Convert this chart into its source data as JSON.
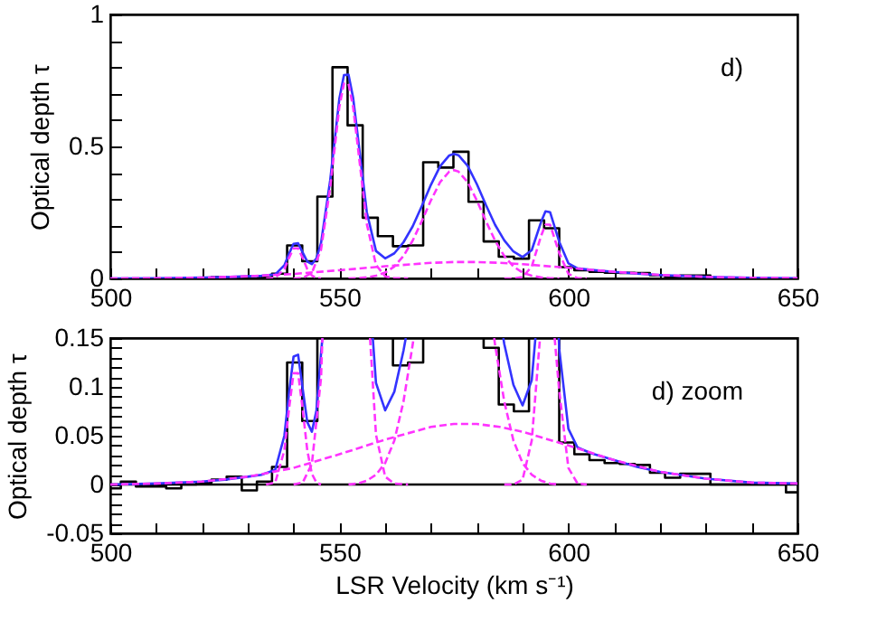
{
  "chart_data": [
    {
      "type": "line",
      "ylabel": "Optical depth τ",
      "annotations": [
        "d)"
      ],
      "xlim": [
        500,
        650
      ],
      "ylim": [
        0,
        1
      ],
      "xticks": [
        500,
        {
          "value": 510,
          "label": null
        },
        {
          "value": 520,
          "label": null
        },
        {
          "value": 530,
          "label": null
        },
        {
          "value": 540,
          "label": null
        },
        550,
        {
          "value": 560,
          "label": null
        },
        {
          "value": 570,
          "label": null
        },
        {
          "value": 580,
          "label": null
        },
        {
          "value": 590,
          "label": null
        },
        600,
        {
          "value": 610,
          "label": null
        },
        {
          "value": 620,
          "label": null
        },
        {
          "value": 630,
          "label": null
        },
        {
          "value": 640,
          "label": null
        },
        650
      ],
      "yticks": [
        0,
        {
          "value": 0.1,
          "label": null
        },
        {
          "value": 0.2,
          "label": null
        },
        {
          "value": 0.3,
          "label": null
        },
        {
          "value": 0.4,
          "label": null
        },
        0.5,
        {
          "value": 0.6,
          "label": null
        },
        {
          "value": 0.7,
          "label": null
        },
        {
          "value": 0.8,
          "label": null
        },
        {
          "value": 0.9,
          "label": null
        },
        1
      ],
      "series": [
        {
          "type": "step",
          "color": "#000000",
          "x": [
            515.5,
            518.8,
            522.1,
            525.4,
            528.7,
            532.0,
            535.3,
            538.6,
            541.9,
            545.2,
            548.5,
            551.8,
            555.1,
            558.4,
            561.7,
            565.0,
            568.3,
            571.6,
            574.9,
            578.2,
            581.5,
            584.8,
            588.1,
            591.4,
            594.7,
            598.0,
            601.3,
            604.6,
            607.9,
            611.2,
            614.5,
            617.8,
            621.1,
            624.4,
            627.7,
            631.0,
            634.3,
            637.6,
            640.9,
            644.2
          ],
          "values": [
            0,
            0.002,
            0.005,
            0.008,
            null,
            0.003,
            0.018,
            0.125,
            0.065,
            0.31,
            0.8,
            0.58,
            0.23,
            0.16,
            0.122,
            0.125,
            0.44,
            0.42,
            0.48,
            0.29,
            0.14,
            0.082,
            0.075,
            0.22,
            0.19,
            0.043,
            0.031,
            0.025,
            0.022,
            0.021,
            0.02,
            0.012,
            0.007,
            0.011,
            0.011,
            0,
            0,
            0,
            0,
            0
          ]
        },
        {
          "type": "line",
          "color": "#3333ff",
          "x": [
            500,
            510,
            520,
            525,
            530,
            533,
            536,
            538,
            539,
            540,
            541,
            542,
            543,
            544,
            545,
            546,
            548,
            550,
            551,
            552,
            553,
            554,
            556,
            558,
            560,
            562,
            564,
            566,
            568,
            570,
            572,
            574,
            575,
            576,
            578,
            580,
            582,
            584,
            586,
            588,
            590,
            592,
            594,
            595,
            596,
            598,
            600,
            602,
            605,
            610,
            615,
            620,
            630,
            640,
            650
          ],
          "values": [
            0,
            0.001,
            0.003,
            0.005,
            0.008,
            0.01,
            0.015,
            0.05,
            0.093,
            0.131,
            0.133,
            0.098,
            0.064,
            0.054,
            0.076,
            0.134,
            0.372,
            0.681,
            0.77,
            0.772,
            0.685,
            0.542,
            0.25,
            0.104,
            0.076,
            0.095,
            0.137,
            0.197,
            0.274,
            0.355,
            0.425,
            0.466,
            0.472,
            0.467,
            0.427,
            0.358,
            0.278,
            0.203,
            0.144,
            0.102,
            0.081,
            0.107,
            0.212,
            0.254,
            0.251,
            0.139,
            0.057,
            0.038,
            0.032,
            0.025,
            0.018,
            0.013,
            0.006,
            0.002,
            0.001
          ]
        },
        {
          "type": "line",
          "color": "#ff33ff",
          "line_style": "dashed",
          "x": [
            534,
            536,
            538,
            539,
            540,
            541,
            542,
            543,
            544,
            545,
            546
          ],
          "values": [
            0,
            0.002,
            0.035,
            0.077,
            0.114,
            0.114,
            0.077,
            0.035,
            0.011,
            0.002,
            0
          ]
        },
        {
          "type": "line",
          "color": "#ff33ff",
          "line_style": "dashed",
          "x": [
            540,
            542,
            544,
            546,
            548,
            550,
            551,
            552,
            553,
            554,
            556,
            558,
            560,
            562,
            565
          ],
          "values": [
            0,
            0.002,
            0.021,
            0.109,
            0.344,
            0.65,
            0.738,
            0.738,
            0.65,
            0.504,
            0.206,
            0.051,
            0.008,
            0.001,
            0
          ]
        },
        {
          "type": "line",
          "color": "#ff33ff",
          "line_style": "dashed",
          "x": [
            552,
            554,
            556,
            558,
            560,
            562,
            564,
            566,
            568,
            570,
            572,
            574,
            575,
            576,
            578,
            580,
            582,
            584,
            586,
            588,
            590,
            592,
            594,
            596,
            598
          ],
          "values": [
            0,
            0.001,
            0.004,
            0.01,
            0.022,
            0.045,
            0.085,
            0.143,
            0.217,
            0.296,
            0.365,
            0.405,
            0.41,
            0.405,
            0.365,
            0.296,
            0.217,
            0.143,
            0.085,
            0.045,
            0.022,
            0.01,
            0.004,
            0.001,
            0
          ]
        },
        {
          "type": "line",
          "color": "#ff33ff",
          "line_style": "dashed",
          "x": [
            586,
            588,
            590,
            592,
            594,
            595,
            596,
            598,
            600,
            602,
            604
          ],
          "values": [
            0,
            0,
            0.005,
            0.045,
            0.159,
            0.204,
            0.204,
            0.096,
            0.017,
            0.001,
            0
          ]
        },
        {
          "type": "line",
          "color": "#ff33ff",
          "line_style": "dashed",
          "x": [
            500,
            510,
            520,
            530,
            540,
            550,
            560,
            570,
            575,
            578,
            580,
            585,
            590,
            600,
            610,
            620,
            630,
            640,
            650
          ],
          "values": [
            0,
            0.001,
            0.003,
            0.008,
            0.017,
            0.031,
            0.046,
            0.059,
            0.062,
            0.062,
            0.062,
            0.059,
            0.054,
            0.04,
            0.025,
            0.013,
            0.006,
            0.002,
            0.001
          ]
        }
      ]
    },
    {
      "type": "line",
      "xlabel": "LSR Velocity (km s⁻¹)",
      "ylabel": "Optical depth τ",
      "annotations": [
        "d) zoom"
      ],
      "xlim": [
        500,
        650
      ],
      "ylim": [
        -0.05,
        0.15
      ],
      "xticks": [
        500,
        {
          "value": 510,
          "label": null
        },
        {
          "value": 520,
          "label": null
        },
        {
          "value": 530,
          "label": null
        },
        {
          "value": 540,
          "label": null
        },
        550,
        {
          "value": 560,
          "label": null
        },
        {
          "value": 570,
          "label": null
        },
        {
          "value": 580,
          "label": null
        },
        {
          "value": 590,
          "label": null
        },
        600,
        {
          "value": 610,
          "label": null
        },
        {
          "value": 620,
          "label": null
        },
        {
          "value": 630,
          "label": null
        },
        {
          "value": 640,
          "label": null
        },
        650
      ],
      "yticks": [
        -0.05,
        {
          "value": -0.04,
          "label": null
        },
        {
          "value": -0.03,
          "label": null
        },
        {
          "value": -0.02,
          "label": null
        },
        {
          "value": -0.01,
          "label": null
        },
        0,
        {
          "value": 0.01,
          "label": null
        },
        {
          "value": 0.02,
          "label": null
        },
        {
          "value": 0.03,
          "label": null
        },
        {
          "value": 0.04,
          "label": null
        },
        0.05,
        {
          "value": 0.06,
          "label": null
        },
        {
          "value": 0.07,
          "label": null
        },
        {
          "value": 0.08,
          "label": null
        },
        {
          "value": 0.09,
          "label": null
        },
        0.1,
        {
          "value": 0.11,
          "label": null
        },
        {
          "value": 0.12,
          "label": null
        },
        {
          "value": 0.13,
          "label": null
        },
        {
          "value": 0.14,
          "label": null
        },
        0.15
      ],
      "ref_lines": [
        {
          "axis": "y",
          "value": 0,
          "color": "#000000"
        }
      ],
      "series": [
        {
          "type": "step",
          "color": "#000000",
          "x": [
            500,
            502.3,
            505.6,
            508.9,
            512.2,
            515.5,
            518.8,
            522.1,
            525.4,
            528.7,
            532.0,
            535.3,
            538.6,
            541.9,
            545.2,
            548.5,
            561.7,
            561.7,
            565.0,
            568.3,
            571.6,
            581.5,
            581.5,
            584.8,
            588.1,
            591.4,
            594.7,
            598.0,
            598.0,
            601.3,
            604.6,
            607.9,
            611.2,
            614.5,
            617.8,
            621.1,
            624.4,
            627.7,
            631.0,
            634.3,
            637.6,
            640.9,
            644.2,
            647.5,
            650
          ],
          "values": [
            -0.004,
            0.003,
            -0.002,
            -0.002,
            -0.004,
            0,
            0.002,
            0.005,
            0.008,
            -0.006,
            0.003,
            0.018,
            0.125,
            0.065,
            0.15,
            null,
            0.15,
            0.122,
            0.125,
            0.15,
            null,
            0.15,
            0.14,
            0.082,
            0.075,
            0.15,
            null,
            0.15,
            0.043,
            0.031,
            0.025,
            0.022,
            0.021,
            0.02,
            0.012,
            0.007,
            0.011,
            0.011,
            0,
            0,
            0,
            0,
            0,
            -0.008,
            -0.008
          ]
        },
        {
          "type": "line",
          "color": "#3333ff",
          "x": [
            500,
            510,
            520,
            525,
            530,
            533,
            536,
            538,
            539,
            540,
            541,
            542,
            543,
            544,
            545,
            546,
            546.3,
            552,
            557.3,
            558,
            560,
            562,
            564,
            564.5,
            575,
            585.8,
            586,
            588,
            590,
            592,
            592.8,
            595,
            597.9,
            598,
            600,
            602,
            605,
            610,
            615,
            620,
            630,
            640,
            650
          ],
          "values": [
            0,
            0.001,
            0.003,
            0.005,
            0.008,
            0.01,
            0.015,
            0.05,
            0.093,
            0.131,
            0.133,
            0.098,
            0.064,
            0.054,
            0.076,
            0.134,
            0.15,
            null,
            0.15,
            0.104,
            0.076,
            0.095,
            0.137,
            0.15,
            null,
            0.15,
            0.144,
            0.102,
            0.081,
            0.107,
            0.15,
            null,
            0.15,
            0.139,
            0.057,
            0.038,
            0.032,
            0.025,
            0.018,
            0.013,
            0.006,
            0.002,
            0.001
          ]
        },
        {
          "type": "line",
          "color": "#ff33ff",
          "line_style": "dashed",
          "x": [
            534,
            536,
            538,
            539,
            540,
            541,
            542,
            543,
            544,
            545,
            546
          ],
          "values": [
            0,
            0.002,
            0.035,
            0.077,
            0.114,
            0.114,
            0.077,
            0.035,
            0.011,
            0.002,
            0
          ]
        },
        {
          "type": "line",
          "color": "#ff33ff",
          "line_style": "dashed",
          "x": [
            540,
            542,
            544,
            546,
            546.3,
            551,
            556.7,
            558,
            560,
            562,
            565
          ],
          "values": [
            0,
            0.002,
            0.021,
            0.109,
            0.15,
            null,
            0.15,
            0.051,
            0.008,
            0.001,
            0
          ]
        },
        {
          "type": "line",
          "color": "#ff33ff",
          "line_style": "dashed",
          "x": [
            552,
            554,
            556,
            558,
            560,
            562,
            564,
            566,
            566.2,
            575,
            583.8,
            584,
            586,
            588,
            590,
            592,
            594,
            596,
            598
          ],
          "values": [
            0,
            0.001,
            0.004,
            0.01,
            0.022,
            0.045,
            0.085,
            0.143,
            0.15,
            null,
            0.15,
            0.143,
            0.085,
            0.045,
            0.022,
            0.01,
            0.004,
            0.001,
            0
          ]
        },
        {
          "type": "line",
          "color": "#ff33ff",
          "line_style": "dashed",
          "x": [
            586,
            588,
            590,
            592,
            593.8,
            595,
            597,
            598,
            600,
            602,
            604
          ],
          "values": [
            0,
            0,
            0.005,
            0.045,
            0.15,
            null,
            0.15,
            0.096,
            0.017,
            0.001,
            0
          ]
        },
        {
          "type": "line",
          "color": "#ff33ff",
          "line_style": "dashed",
          "x": [
            500,
            510,
            520,
            530,
            540,
            550,
            560,
            570,
            575,
            578,
            580,
            585,
            590,
            600,
            610,
            620,
            630,
            640,
            650
          ],
          "values": [
            0,
            0.001,
            0.003,
            0.008,
            0.017,
            0.031,
            0.046,
            0.059,
            0.062,
            0.062,
            0.062,
            0.059,
            0.054,
            0.04,
            0.025,
            0.013,
            0.006,
            0.002,
            0.001
          ]
        }
      ]
    }
  ]
}
